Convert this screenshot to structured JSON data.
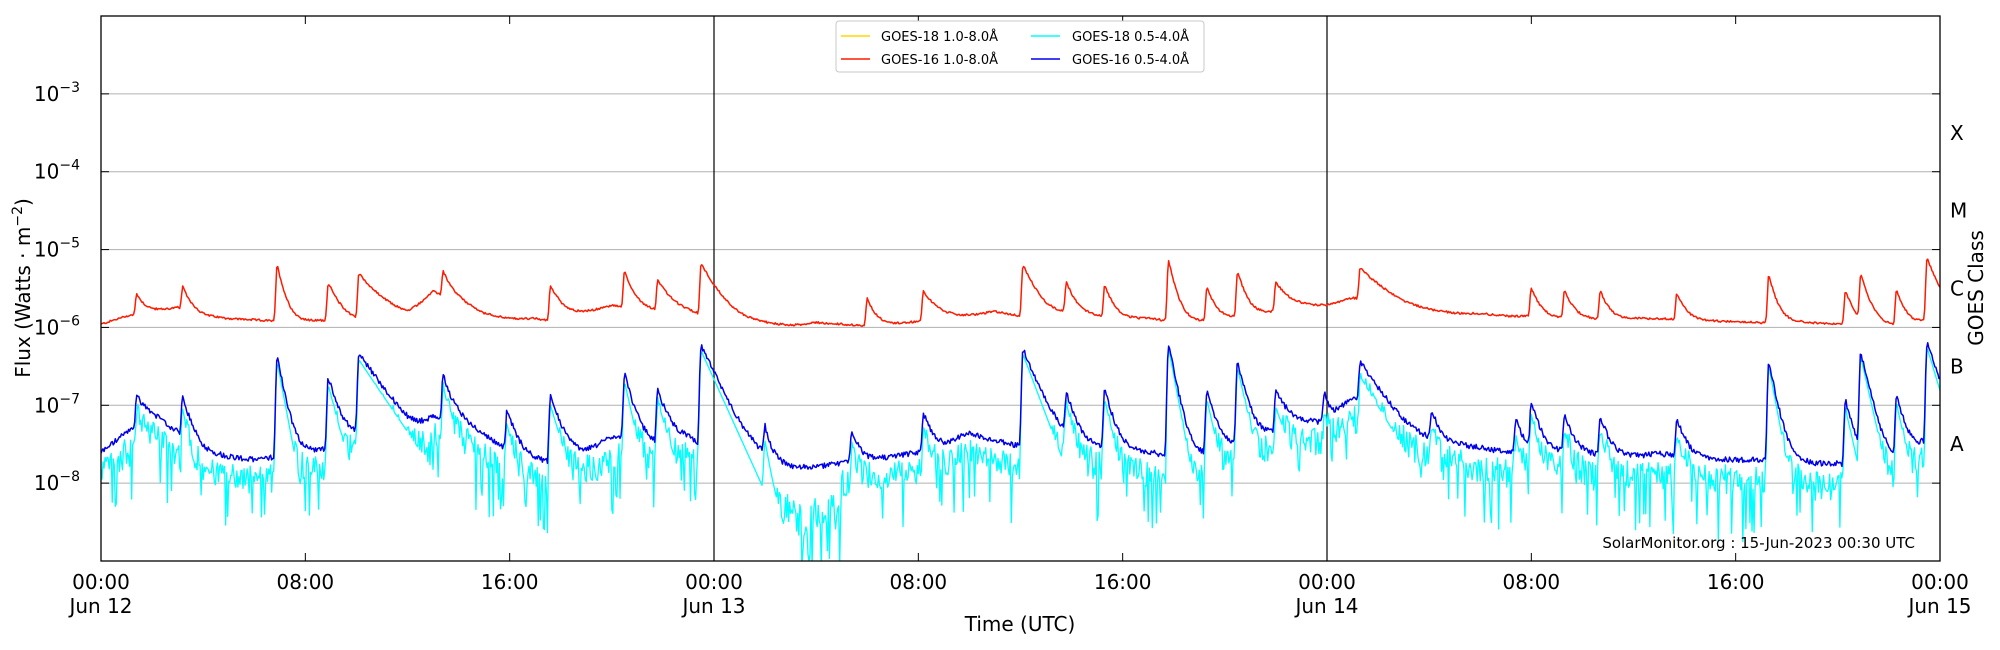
{
  "chart_data": {
    "type": "line",
    "ylabel_main": "Flux (Watts · m",
    "ylabel_exp": "−2",
    "ylabel_close": ")",
    "xlabel": "Time (UTC)",
    "right_axis_label": "GOES Class",
    "credit": "SolarMonitor.org : 15-Jun-2023 00:30 UTC",
    "y_scale": "log",
    "ylim": [
      1e-09,
      0.01
    ],
    "xlim_hours": [
      0,
      72
    ],
    "grid": "horizontal",
    "legend_position": "top-center",
    "x_ticks": [
      {
        "h": 0,
        "time": "00:00",
        "day": "Jun 12"
      },
      {
        "h": 8,
        "time": "08:00",
        "day": ""
      },
      {
        "h": 16,
        "time": "16:00",
        "day": ""
      },
      {
        "h": 24,
        "time": "00:00",
        "day": "Jun 13"
      },
      {
        "h": 32,
        "time": "08:00",
        "day": ""
      },
      {
        "h": 40,
        "time": "16:00",
        "day": ""
      },
      {
        "h": 48,
        "time": "00:00",
        "day": "Jun 14"
      },
      {
        "h": 56,
        "time": "08:00",
        "day": ""
      },
      {
        "h": 64,
        "time": "16:00",
        "day": ""
      },
      {
        "h": 72,
        "time": "00:00",
        "day": "Jun 15"
      }
    ],
    "y_ticks": [
      {
        "exp": -8,
        "label": "10",
        "sup": "−8"
      },
      {
        "exp": -7,
        "label": "10",
        "sup": "−7"
      },
      {
        "exp": -6,
        "label": "10",
        "sup": "−6"
      },
      {
        "exp": -5,
        "label": "10",
        "sup": "−5"
      },
      {
        "exp": -4,
        "label": "10",
        "sup": "−4"
      },
      {
        "exp": -3,
        "label": "10",
        "sup": "−3"
      }
    ],
    "classes": [
      {
        "label": "A",
        "exp": -7.5
      },
      {
        "label": "B",
        "exp": -6.5
      },
      {
        "label": "C",
        "exp": -5.5
      },
      {
        "label": "M",
        "exp": -4.5
      },
      {
        "label": "X",
        "exp": -3.5
      }
    ],
    "day_boundaries_h": [
      24,
      48
    ],
    "series": [
      {
        "name": "GOES-18 1.0-8.0Å",
        "color": "#ffd700",
        "kind": "goes18_long"
      },
      {
        "name": "GOES-16 1.0-8.0Å",
        "color": "#ff1a00",
        "kind": "long"
      },
      {
        "name": "GOES-18 0.5-4.0Å",
        "color": "#00ffff",
        "kind": "goes18_short"
      },
      {
        "name": "GOES-16 0.5-4.0Å",
        "color": "#0000ee",
        "kind": "short"
      }
    ],
    "long_base": [
      [
        0,
        1.1e-06
      ],
      [
        1,
        1.4e-06
      ],
      [
        2,
        1.6e-06
      ],
      [
        3,
        1.8e-06
      ],
      [
        4,
        1.4e-06
      ],
      [
        5,
        1.3e-06
      ],
      [
        6,
        1.25e-06
      ],
      [
        7,
        1.2e-06
      ],
      [
        8,
        1.2e-06
      ],
      [
        9,
        1.25e-06
      ],
      [
        10,
        1.2e-06
      ],
      [
        11,
        1.3e-06
      ],
      [
        12,
        1.3e-06
      ],
      [
        13,
        2.8e-06
      ],
      [
        14,
        2.2e-06
      ],
      [
        15,
        1.5e-06
      ],
      [
        16,
        1.3e-06
      ],
      [
        17,
        1.3e-06
      ],
      [
        18,
        1.15e-06
      ],
      [
        19,
        1.5e-06
      ],
      [
        20,
        1.9e-06
      ],
      [
        21,
        1.8e-06
      ],
      [
        22,
        1.6e-06
      ],
      [
        23,
        1.5e-06
      ],
      [
        24,
        1.3e-06
      ],
      [
        25,
        1.15e-06
      ],
      [
        26,
        1.1e-06
      ],
      [
        27,
        1.05e-06
      ],
      [
        28,
        1.15e-06
      ],
      [
        29,
        1.1e-06
      ],
      [
        30,
        1.05e-06
      ],
      [
        31,
        1.1e-06
      ],
      [
        32,
        1.2e-06
      ],
      [
        33,
        1.3e-06
      ],
      [
        34,
        1.4e-06
      ],
      [
        35,
        1.6e-06
      ],
      [
        36,
        1.4e-06
      ],
      [
        37,
        1.3e-06
      ],
      [
        38,
        1.5e-06
      ],
      [
        39,
        1.4e-06
      ],
      [
        40,
        1.3e-06
      ],
      [
        41,
        1.3e-06
      ],
      [
        42,
        1.2e-06
      ],
      [
        43,
        1.2e-06
      ],
      [
        44,
        1.3e-06
      ],
      [
        45,
        1.4e-06
      ],
      [
        46,
        1.6e-06
      ],
      [
        47,
        1.8e-06
      ],
      [
        48,
        1.9e-06
      ],
      [
        49,
        2.4e-06
      ],
      [
        50,
        2.2e-06
      ],
      [
        51,
        1.8e-06
      ],
      [
        52,
        1.6e-06
      ],
      [
        53,
        1.5e-06
      ],
      [
        54,
        1.5e-06
      ],
      [
        55,
        1.4e-06
      ],
      [
        56,
        1.4e-06
      ],
      [
        57,
        1.3e-06
      ],
      [
        58,
        1.3e-06
      ],
      [
        59,
        1.25e-06
      ],
      [
        60,
        1.3e-06
      ],
      [
        61,
        1.3e-06
      ],
      [
        62,
        1.25e-06
      ],
      [
        63,
        1.2e-06
      ],
      [
        64,
        1.2e-06
      ],
      [
        65,
        1.15e-06
      ],
      [
        66,
        1.2e-06
      ],
      [
        67,
        1.15e-06
      ],
      [
        68,
        1.1e-06
      ],
      [
        69,
        1.05e-06
      ],
      [
        70,
        1.05e-06
      ],
      [
        71,
        1.1e-06
      ],
      [
        72,
        1.4e-06
      ]
    ],
    "long_flares": [
      [
        1.4,
        1.25e-06,
        0.3
      ],
      [
        3.2,
        1.6e-06,
        0.3
      ],
      [
        6.9,
        5.1e-06,
        0.25
      ],
      [
        8.9,
        2.5e-06,
        0.4
      ],
      [
        10.1,
        3.6e-06,
        0.8
      ],
      [
        13.4,
        2.7e-06,
        0.3
      ],
      [
        17.6,
        2.2e-06,
        0.5
      ],
      [
        20.5,
        3.4e-06,
        0.3
      ],
      [
        21.8,
        2.4e-06,
        0.5
      ],
      [
        23.5,
        5.1e-06,
        0.6
      ],
      [
        30.0,
        1.3e-06,
        0.3
      ],
      [
        32.2,
        1.7e-06,
        0.5
      ],
      [
        36.1,
        4.9e-06,
        0.5
      ],
      [
        37.8,
        2.2e-06,
        0.3
      ],
      [
        39.3,
        2.1e-06,
        0.3
      ],
      [
        41.8,
        6.1e-06,
        0.25
      ],
      [
        43.3,
        2e-06,
        0.3
      ],
      [
        44.5,
        3.8e-06,
        0.3
      ],
      [
        46.0,
        2.2e-06,
        0.5
      ],
      [
        49.3,
        3.5e-06,
        0.8
      ],
      [
        56.0,
        1.8e-06,
        0.3
      ],
      [
        57.3,
        1.7e-06,
        0.3
      ],
      [
        58.7,
        1.7e-06,
        0.3
      ],
      [
        61.7,
        1.5e-06,
        0.3
      ],
      [
        65.3,
        3.6e-06,
        0.25
      ],
      [
        68.3,
        1.9e-06,
        0.3
      ],
      [
        68.9,
        3.6e-06,
        0.3
      ],
      [
        70.3,
        1.9e-06,
        0.3
      ],
      [
        71.5,
        6.5e-06,
        0.4
      ]
    ],
    "short_base": [
      [
        0,
        2.5e-08
      ],
      [
        1,
        4.5e-08
      ],
      [
        2,
        6.5e-08
      ],
      [
        3,
        4.5e-08
      ],
      [
        4,
        2.5e-08
      ],
      [
        5,
        2.2e-08
      ],
      [
        6,
        2e-08
      ],
      [
        7,
        2.2e-08
      ],
      [
        8,
        2.5e-08
      ],
      [
        9,
        2.8e-08
      ],
      [
        10,
        4e-08
      ],
      [
        11,
        2.5e-08
      ],
      [
        12,
        2.2e-08
      ],
      [
        13,
        5.5e-08
      ],
      [
        14,
        6e-08
      ],
      [
        15,
        4e-08
      ],
      [
        16,
        2.5e-08
      ],
      [
        17,
        2e-08
      ],
      [
        18,
        1.8e-08
      ],
      [
        19,
        2.4e-08
      ],
      [
        20,
        4e-08
      ],
      [
        21,
        3.5e-08
      ],
      [
        22,
        3e-08
      ],
      [
        23,
        3.5e-08
      ],
      [
        24,
        2.5e-08
      ],
      [
        25,
        1.8e-08
      ],
      [
        26,
        1.6e-08
      ],
      [
        27,
        1.5e-08
      ],
      [
        28,
        1.6e-08
      ],
      [
        29,
        1.8e-08
      ],
      [
        30,
        2e-08
      ],
      [
        31,
        2.2e-08
      ],
      [
        32,
        2.5e-08
      ],
      [
        33,
        3e-08
      ],
      [
        34,
        4.5e-08
      ],
      [
        35,
        3.5e-08
      ],
      [
        36,
        3e-08
      ],
      [
        37,
        3.5e-08
      ],
      [
        38,
        3e-08
      ],
      [
        39,
        2.8e-08
      ],
      [
        40,
        2.5e-08
      ],
      [
        41,
        2.5e-08
      ],
      [
        42,
        2.2e-08
      ],
      [
        43,
        2.2e-08
      ],
      [
        44,
        2.8e-08
      ],
      [
        45,
        3.5e-08
      ],
      [
        46,
        4.5e-08
      ],
      [
        47,
        5.5e-08
      ],
      [
        48,
        6e-08
      ],
      [
        49,
        1.3e-07
      ],
      [
        50,
        6e-08
      ],
      [
        51,
        3.5e-08
      ],
      [
        52,
        3e-08
      ],
      [
        53,
        3e-08
      ],
      [
        54,
        2.8e-08
      ],
      [
        55,
        2.5e-08
      ],
      [
        56,
        2.5e-08
      ],
      [
        57,
        2.5e-08
      ],
      [
        58,
        2.4e-08
      ],
      [
        59,
        2.2e-08
      ],
      [
        60,
        2.2e-08
      ],
      [
        61,
        2.4e-08
      ],
      [
        62,
        2.2e-08
      ],
      [
        63,
        2e-08
      ],
      [
        64,
        2e-08
      ],
      [
        65,
        2e-08
      ],
      [
        66,
        2e-08
      ],
      [
        67,
        1.8e-08
      ],
      [
        68,
        1.8e-08
      ],
      [
        69,
        1.6e-08
      ],
      [
        70,
        1.8e-08
      ],
      [
        71,
        2.5e-08
      ],
      [
        72,
        5e-08
      ]
    ],
    "short_flares": [
      [
        1.4,
        8.5e-08,
        0.4
      ],
      [
        3.2,
        8.5e-08,
        0.3
      ],
      [
        6.9,
        4e-07,
        0.25
      ],
      [
        8.9,
        2e-07,
        0.35
      ],
      [
        10.1,
        4.2e-07,
        0.9
      ],
      [
        13.4,
        1.8e-07,
        0.3
      ],
      [
        15.9,
        6.2e-08,
        0.3
      ],
      [
        17.6,
        1.1e-07,
        0.4
      ],
      [
        20.5,
        2.2e-07,
        0.3
      ],
      [
        21.8,
        1.2e-07,
        0.4
      ],
      [
        23.5,
        5.5e-07,
        0.6
      ],
      [
        26.0,
        3e-08,
        0.2
      ],
      [
        29.4,
        3e-08,
        0.25
      ],
      [
        32.2,
        5.5e-08,
        0.3
      ],
      [
        36.1,
        5e-07,
        0.5
      ],
      [
        37.8,
        1e-07,
        0.3
      ],
      [
        39.3,
        1.3e-07,
        0.3
      ],
      [
        41.8,
        6e-07,
        0.25
      ],
      [
        43.3,
        1.3e-07,
        0.3
      ],
      [
        44.5,
        3.3e-07,
        0.3
      ],
      [
        46.0,
        1e-07,
        0.5
      ],
      [
        47.9,
        9e-08,
        0.2
      ],
      [
        49.3,
        2.6e-07,
        0.8
      ],
      [
        52.1,
        5e-08,
        0.25
      ],
      [
        55.4,
        4.5e-08,
        0.25
      ],
      [
        56.0,
        8e-08,
        0.3
      ],
      [
        57.3,
        5e-08,
        0.3
      ],
      [
        58.7,
        5e-08,
        0.3
      ],
      [
        61.7,
        4.5e-08,
        0.3
      ],
      [
        65.3,
        3.5e-07,
        0.25
      ],
      [
        68.3,
        1e-07,
        0.3
      ],
      [
        68.9,
        4.5e-07,
        0.3
      ],
      [
        70.3,
        1.1e-07,
        0.3
      ],
      [
        71.5,
        6e-07,
        0.4
      ]
    ]
  }
}
